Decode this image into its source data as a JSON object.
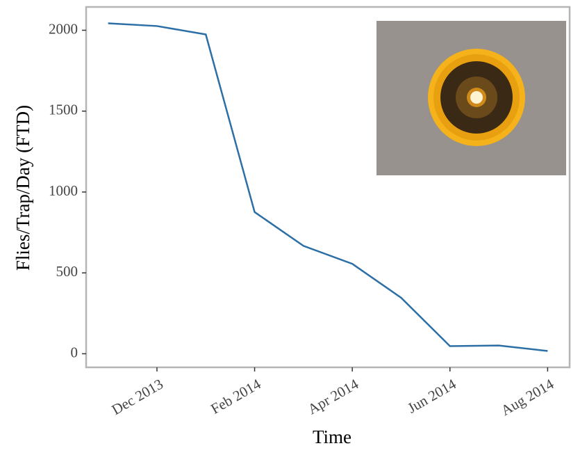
{
  "chart_data": {
    "type": "line",
    "x_label": "Time",
    "y_label": "Flies/Trap/Day (FTD)",
    "x": [
      "2013-11",
      "2013-12",
      "2014-01",
      "2014-02",
      "2014-03",
      "2014-04",
      "2014-05",
      "2014-06",
      "2014-07",
      "2014-08"
    ],
    "series": [
      {
        "color": "#2b6fa6",
        "values": [
          2043,
          2026,
          1974,
          876,
          667,
          556,
          346,
          47,
          51,
          17
        ]
      }
    ],
    "xticks": [
      {
        "value": "2013-12",
        "label": "Dec 2013"
      },
      {
        "value": "2014-02",
        "label": "Feb 2014"
      },
      {
        "value": "2014-04",
        "label": "Apr 2014"
      },
      {
        "value": "2014-06",
        "label": "Jun 2014"
      },
      {
        "value": "2014-08",
        "label": "Aug 2014"
      }
    ],
    "ylim": [
      -84,
      2144
    ],
    "yticks": [
      0,
      500,
      1000,
      1500,
      2000
    ]
  }
}
